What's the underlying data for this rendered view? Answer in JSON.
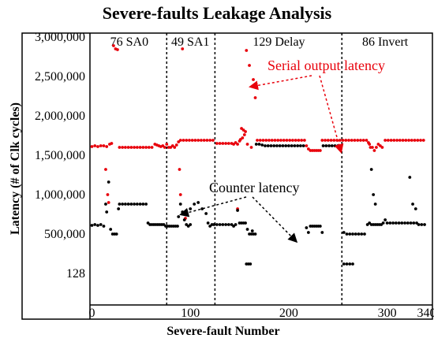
{
  "chart_data": {
    "type": "scatter",
    "title": "Severe-faults Leakage Analysis",
    "xlabel": "Severe-fault Number",
    "ylabel": "Latency (# of Clk cycles)",
    "xlim": [
      -2,
      346
    ],
    "xticks": [
      0,
      100,
      200,
      300,
      340
    ],
    "ytick_labels": [
      "128",
      "500,000",
      "1,000,000",
      "1,500,000",
      "2,000,000",
      "2,500,000",
      "3,000,000"
    ],
    "ytick_values": [
      128,
      500000,
      1000000,
      1500000,
      2000000,
      2500000,
      3000000
    ],
    "ylim": [
      -400000,
      3050000
    ],
    "grid": false,
    "segment_boundaries": [
      76,
      125,
      254
    ],
    "segment_labels": [
      {
        "label": "76 SA0",
        "x": 38
      },
      {
        "label": "49 SA1",
        "x": 100
      },
      {
        "label": "129 Delay",
        "x": 190
      },
      {
        "label": "86 Invert",
        "x": 298
      }
    ],
    "annotations": [
      {
        "text": "Serial output latency",
        "color": "#e8000b"
      },
      {
        "text": "Counter latency",
        "color": "#000000"
      }
    ],
    "series": [
      {
        "name": "Serial output latency",
        "color": "#e8000b",
        "points": [
          [
            0,
            1610000
          ],
          [
            3,
            1620000
          ],
          [
            6,
            1610000
          ],
          [
            9,
            1620000
          ],
          [
            12,
            1620000
          ],
          [
            15,
            1610000
          ],
          [
            18,
            1640000
          ],
          [
            20,
            1650000
          ],
          [
            22,
            2890000
          ],
          [
            24,
            2850000
          ],
          [
            26,
            2840000
          ],
          [
            14,
            1320000
          ],
          [
            16,
            1000000
          ],
          [
            17,
            900000
          ],
          [
            28,
            1600000
          ],
          [
            31,
            1600000
          ],
          [
            34,
            1600000
          ],
          [
            37,
            1600000
          ],
          [
            40,
            1600000
          ],
          [
            43,
            1600000
          ],
          [
            46,
            1600000
          ],
          [
            49,
            1600000
          ],
          [
            52,
            1600000
          ],
          [
            55,
            1600000
          ],
          [
            58,
            1600000
          ],
          [
            61,
            1600000
          ],
          [
            64,
            1640000
          ],
          [
            66,
            1630000
          ],
          [
            68,
            1620000
          ],
          [
            70,
            1610000
          ],
          [
            72,
            1620000
          ],
          [
            74,
            1600000
          ],
          [
            76,
            1640000
          ],
          [
            78,
            1600000
          ],
          [
            80,
            1600000
          ],
          [
            82,
            1620000
          ],
          [
            84,
            1600000
          ],
          [
            86,
            1630000
          ],
          [
            88,
            1670000
          ],
          [
            92,
            2850000
          ],
          [
            90,
            1000000
          ],
          [
            89,
            1320000
          ],
          [
            95,
            700000
          ],
          [
            90,
            1690000
          ],
          [
            93,
            1690000
          ],
          [
            96,
            1690000
          ],
          [
            99,
            1690000
          ],
          [
            102,
            1690000
          ],
          [
            105,
            1690000
          ],
          [
            108,
            1690000
          ],
          [
            111,
            1690000
          ],
          [
            114,
            1690000
          ],
          [
            117,
            1690000
          ],
          [
            120,
            1690000
          ],
          [
            123,
            1690000
          ],
          [
            127,
            1650000
          ],
          [
            130,
            1650000
          ],
          [
            133,
            1650000
          ],
          [
            136,
            1650000
          ],
          [
            139,
            1650000
          ],
          [
            142,
            1650000
          ],
          [
            144,
            1640000
          ],
          [
            146,
            1660000
          ],
          [
            148,
            1640000
          ],
          [
            150,
            1680000
          ],
          [
            151,
            1700000
          ],
          [
            152,
            1840000
          ],
          [
            154,
            1820000
          ],
          [
            156,
            1800000
          ],
          [
            157,
            2830000
          ],
          [
            155,
            1760000
          ],
          [
            153,
            1720000
          ],
          [
            160,
            2640000
          ],
          [
            164,
            2460000
          ],
          [
            166,
            2230000
          ],
          [
            158,
            1640000
          ],
          [
            162,
            1600000
          ],
          [
            148,
            820000
          ],
          [
            168,
            1690000
          ],
          [
            171,
            1690000
          ],
          [
            174,
            1690000
          ],
          [
            177,
            1690000
          ],
          [
            180,
            1690000
          ],
          [
            183,
            1690000
          ],
          [
            186,
            1690000
          ],
          [
            189,
            1690000
          ],
          [
            192,
            1690000
          ],
          [
            195,
            1690000
          ],
          [
            198,
            1690000
          ],
          [
            201,
            1690000
          ],
          [
            204,
            1690000
          ],
          [
            207,
            1690000
          ],
          [
            210,
            1690000
          ],
          [
            213,
            1690000
          ],
          [
            216,
            1690000
          ],
          [
            218,
            1620000
          ],
          [
            220,
            1580000
          ],
          [
            222,
            1560000
          ],
          [
            224,
            1560000
          ],
          [
            226,
            1560000
          ],
          [
            228,
            1560000
          ],
          [
            230,
            1560000
          ],
          [
            232,
            1560000
          ],
          [
            234,
            1690000
          ],
          [
            237,
            1690000
          ],
          [
            240,
            1690000
          ],
          [
            243,
            1690000
          ],
          [
            246,
            1690000
          ],
          [
            249,
            1690000
          ],
          [
            252,
            1690000
          ],
          [
            255,
            1690000
          ],
          [
            258,
            1690000
          ],
          [
            261,
            1690000
          ],
          [
            264,
            1690000
          ],
          [
            267,
            1690000
          ],
          [
            270,
            1690000
          ],
          [
            273,
            1690000
          ],
          [
            276,
            1690000
          ],
          [
            279,
            1690000
          ],
          [
            281,
            1660000
          ],
          [
            282,
            1640000
          ],
          [
            283,
            1600000
          ],
          [
            285,
            1600000
          ],
          [
            287,
            1560000
          ],
          [
            289,
            1600000
          ],
          [
            291,
            1640000
          ],
          [
            293,
            1620000
          ],
          [
            295,
            1600000
          ],
          [
            298,
            1690000
          ],
          [
            301,
            1690000
          ],
          [
            304,
            1690000
          ],
          [
            307,
            1690000
          ],
          [
            310,
            1690000
          ],
          [
            313,
            1690000
          ],
          [
            316,
            1690000
          ],
          [
            319,
            1690000
          ],
          [
            322,
            1690000
          ],
          [
            325,
            1690000
          ],
          [
            328,
            1690000
          ],
          [
            331,
            1690000
          ],
          [
            334,
            1690000
          ],
          [
            337,
            1690000
          ]
        ]
      },
      {
        "name": "Counter latency",
        "color": "#000000",
        "points": [
          [
            0,
            610000
          ],
          [
            3,
            620000
          ],
          [
            6,
            610000
          ],
          [
            9,
            620000
          ],
          [
            12,
            600000
          ],
          [
            15,
            780000
          ],
          [
            17,
            1160000
          ],
          [
            14,
            880000
          ],
          [
            19,
            560000
          ],
          [
            21,
            500000
          ],
          [
            23,
            500000
          ],
          [
            25,
            500000
          ],
          [
            27,
            820000
          ],
          [
            28,
            880000
          ],
          [
            31,
            880000
          ],
          [
            34,
            880000
          ],
          [
            37,
            880000
          ],
          [
            40,
            880000
          ],
          [
            43,
            880000
          ],
          [
            46,
            880000
          ],
          [
            49,
            880000
          ],
          [
            52,
            880000
          ],
          [
            55,
            880000
          ],
          [
            57,
            640000
          ],
          [
            59,
            620000
          ],
          [
            61,
            620000
          ],
          [
            63,
            620000
          ],
          [
            65,
            620000
          ],
          [
            67,
            620000
          ],
          [
            69,
            620000
          ],
          [
            71,
            620000
          ],
          [
            73,
            620000
          ],
          [
            75,
            600000
          ],
          [
            77,
            600000
          ],
          [
            79,
            600000
          ],
          [
            81,
            600000
          ],
          [
            83,
            600000
          ],
          [
            85,
            600000
          ],
          [
            87,
            600000
          ],
          [
            88,
            720000
          ],
          [
            90,
            880000
          ],
          [
            92,
            780000
          ],
          [
            94,
            680000
          ],
          [
            96,
            620000
          ],
          [
            98,
            600000
          ],
          [
            100,
            620000
          ],
          [
            100,
            820000
          ],
          [
            104,
            880000
          ],
          [
            108,
            900000
          ],
          [
            112,
            820000
          ],
          [
            116,
            760000
          ],
          [
            118,
            640000
          ],
          [
            120,
            600000
          ],
          [
            122,
            620000
          ],
          [
            124,
            620000
          ],
          [
            127,
            620000
          ],
          [
            130,
            620000
          ],
          [
            133,
            620000
          ],
          [
            136,
            620000
          ],
          [
            139,
            620000
          ],
          [
            142,
            620000
          ],
          [
            144,
            600000
          ],
          [
            146,
            620000
          ],
          [
            148,
            800000
          ],
          [
            150,
            640000
          ],
          [
            152,
            640000
          ],
          [
            154,
            640000
          ],
          [
            156,
            640000
          ],
          [
            158,
            560000
          ],
          [
            160,
            500000
          ],
          [
            162,
            500000
          ],
          [
            164,
            500000
          ],
          [
            166,
            500000
          ],
          [
            157,
            120000
          ],
          [
            159,
            120000
          ],
          [
            161,
            120000
          ],
          [
            163,
            540000
          ],
          [
            167,
            1640000
          ],
          [
            170,
            1640000
          ],
          [
            173,
            1630000
          ],
          [
            176,
            1620000
          ],
          [
            179,
            1620000
          ],
          [
            182,
            1620000
          ],
          [
            185,
            1620000
          ],
          [
            188,
            1620000
          ],
          [
            191,
            1620000
          ],
          [
            194,
            1620000
          ],
          [
            197,
            1620000
          ],
          [
            200,
            1620000
          ],
          [
            203,
            1620000
          ],
          [
            206,
            1620000
          ],
          [
            209,
            1620000
          ],
          [
            212,
            1620000
          ],
          [
            215,
            1620000
          ],
          [
            218,
            580000
          ],
          [
            220,
            520000
          ],
          [
            222,
            600000
          ],
          [
            224,
            600000
          ],
          [
            226,
            600000
          ],
          [
            228,
            600000
          ],
          [
            230,
            600000
          ],
          [
            232,
            600000
          ],
          [
            234,
            520000
          ],
          [
            235,
            1620000
          ],
          [
            238,
            1620000
          ],
          [
            241,
            1620000
          ],
          [
            244,
            1620000
          ],
          [
            247,
            1620000
          ],
          [
            250,
            1620000
          ],
          [
            256,
            520000
          ],
          [
            259,
            500000
          ],
          [
            262,
            500000
          ],
          [
            265,
            500000
          ],
          [
            268,
            500000
          ],
          [
            271,
            500000
          ],
          [
            274,
            500000
          ],
          [
            277,
            500000
          ],
          [
            256,
            120000
          ],
          [
            259,
            120000
          ],
          [
            262,
            120000
          ],
          [
            265,
            120000
          ],
          [
            280,
            620000
          ],
          [
            282,
            640000
          ],
          [
            284,
            620000
          ],
          [
            286,
            620000
          ],
          [
            288,
            620000
          ],
          [
            290,
            620000
          ],
          [
            292,
            620000
          ],
          [
            294,
            620000
          ],
          [
            296,
            640000
          ],
          [
            298,
            680000
          ],
          [
            286,
            1000000
          ],
          [
            284,
            1320000
          ],
          [
            288,
            880000
          ],
          [
            300,
            640000
          ],
          [
            303,
            640000
          ],
          [
            306,
            640000
          ],
          [
            309,
            640000
          ],
          [
            312,
            640000
          ],
          [
            315,
            640000
          ],
          [
            318,
            640000
          ],
          [
            321,
            640000
          ],
          [
            324,
            640000
          ],
          [
            327,
            640000
          ],
          [
            330,
            640000
          ],
          [
            323,
            1220000
          ],
          [
            326,
            880000
          ],
          [
            329,
            820000
          ],
          [
            332,
            620000
          ],
          [
            335,
            620000
          ],
          [
            338,
            620000
          ]
        ]
      }
    ]
  }
}
